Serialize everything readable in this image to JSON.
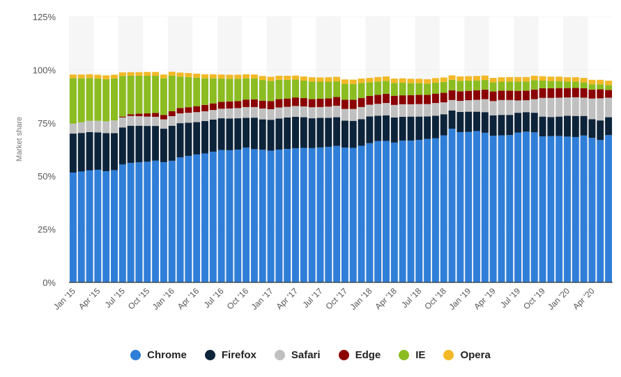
{
  "chart_data": {
    "type": "bar",
    "stacked": true,
    "ylabel": "Market share",
    "xlabel": "",
    "ylim": [
      0,
      125
    ],
    "y_ticks": [
      "0%",
      "25%",
      "50%",
      "75%",
      "100%",
      "125%"
    ],
    "y_tick_values": [
      0,
      25,
      50,
      75,
      100,
      125
    ],
    "grid": "horizontal",
    "legend_position": "bottom",
    "x_tick_labels": [
      "Jan '15",
      "Apr '15",
      "Jul '15",
      "Oct '15",
      "Jan '16",
      "Apr '16",
      "Jul '16",
      "Oct '16",
      "Jan '17",
      "Apr '17",
      "Jul '17",
      "Oct '17",
      "Jan '18",
      "Apr '18",
      "Jul '18",
      "Oct '18",
      "Jan '19",
      "Apr '19",
      "Jul '19",
      "Oct '19",
      "Jan '20",
      "Apr '20"
    ],
    "categories": [
      "Jan '15",
      "Feb '15",
      "Mar '15",
      "Apr '15",
      "May '15",
      "Jun '15",
      "Jul '15",
      "Aug '15",
      "Sep '15",
      "Oct '15",
      "Nov '15",
      "Dec '15",
      "Jan '16",
      "Feb '16",
      "Mar '16",
      "Apr '16",
      "May '16",
      "Jun '16",
      "Jul '16",
      "Aug '16",
      "Sep '16",
      "Oct '16",
      "Nov '16",
      "Dec '16",
      "Jan '17",
      "Feb '17",
      "Mar '17",
      "Apr '17",
      "May '17",
      "Jun '17",
      "Jul '17",
      "Aug '17",
      "Sep '17",
      "Oct '17",
      "Nov '17",
      "Dec '17",
      "Jan '18",
      "Feb '18",
      "Mar '18",
      "Apr '18",
      "May '18",
      "Jun '18",
      "Jul '18",
      "Aug '18",
      "Sep '18",
      "Oct '18",
      "Nov '18",
      "Dec '18",
      "Jan '19",
      "Feb '19",
      "Mar '19",
      "Apr '19",
      "May '19",
      "Jun '19",
      "Jul '19",
      "Aug '19",
      "Sep '19",
      "Oct '19",
      "Nov '19",
      "Dec '19",
      "Jan '20",
      "Feb '20",
      "Mar '20",
      "Apr '20",
      "May '20",
      "Jun '20"
    ],
    "series": [
      {
        "name": "Chrome",
        "color": "#2f7ed8",
        "values": [
          51.7,
          52.2,
          52.7,
          53.0,
          52.3,
          52.8,
          55.5,
          56.2,
          56.5,
          56.8,
          57.3,
          56.6,
          57.2,
          58.8,
          59.5,
          60.2,
          60.7,
          61.5,
          62.3,
          62.2,
          62.5,
          63.4,
          62.7,
          62.4,
          62.0,
          62.5,
          62.8,
          63.1,
          63.3,
          63.2,
          63.5,
          63.8,
          64.2,
          63.4,
          63.3,
          64.3,
          65.5,
          66.5,
          66.6,
          65.8,
          66.7,
          66.7,
          67.0,
          67.5,
          67.8,
          69.2,
          72.3,
          70.7,
          70.8,
          71.2,
          70.4,
          69.0,
          69.2,
          69.3,
          70.5,
          70.9,
          70.6,
          68.7,
          68.8,
          68.9,
          68.6,
          68.4,
          69.1,
          68.0,
          67.0,
          69.3
        ]
      },
      {
        "name": "Firefox",
        "color": "#0d233a",
        "values": [
          18.3,
          18.1,
          18.0,
          17.6,
          17.9,
          17.4,
          17.4,
          17.5,
          17.2,
          16.8,
          16.3,
          15.7,
          16.5,
          16.1,
          15.6,
          15.2,
          15.2,
          15.1,
          14.9,
          14.9,
          14.7,
          14.0,
          14.8,
          14.3,
          14.5,
          14.6,
          14.8,
          14.8,
          14.4,
          14.0,
          13.9,
          13.6,
          13.5,
          12.7,
          12.7,
          12.5,
          12.6,
          11.9,
          12.0,
          11.8,
          11.2,
          11.3,
          11.0,
          10.6,
          10.6,
          9.9,
          8.6,
          9.5,
          9.5,
          9.1,
          9.7,
          9.6,
          9.6,
          9.5,
          9.3,
          9.2,
          9.2,
          9.3,
          9.0,
          9.1,
          9.8,
          9.9,
          9.2,
          8.8,
          9.2,
          8.4
        ]
      },
      {
        "name": "Safari",
        "color": "#c0c0c0",
        "values": [
          4.7,
          5.0,
          5.3,
          5.4,
          5.6,
          6.0,
          4.7,
          4.6,
          4.5,
          4.4,
          4.3,
          4.4,
          4.5,
          4.6,
          4.7,
          4.7,
          4.6,
          4.5,
          4.5,
          4.7,
          4.8,
          5.1,
          5.0,
          5.1,
          5.0,
          5.2,
          5.0,
          5.1,
          5.1,
          5.2,
          5.1,
          5.3,
          5.4,
          5.5,
          5.6,
          5.7,
          5.5,
          5.6,
          5.8,
          5.9,
          5.9,
          5.8,
          5.9,
          5.8,
          6.0,
          5.6,
          4.9,
          5.2,
          5.4,
          5.6,
          6.1,
          6.7,
          7.0,
          7.0,
          5.8,
          5.6,
          6.4,
          8.8,
          9.0,
          8.9,
          8.6,
          8.8,
          8.6,
          9.7,
          10.4,
          9.2
        ]
      },
      {
        "name": "Edge",
        "color": "#8b0000",
        "values": [
          0,
          0,
          0,
          0,
          0,
          0,
          0.4,
          0.8,
          1.2,
          1.5,
          1.8,
          2.1,
          2.3,
          2.5,
          2.6,
          2.8,
          3.0,
          3.1,
          3.2,
          3.3,
          3.3,
          3.5,
          3.6,
          3.7,
          3.8,
          3.9,
          3.9,
          4.0,
          3.9,
          3.8,
          3.9,
          3.9,
          4.1,
          4.3,
          4.3,
          4.2,
          4.1,
          4.2,
          4.3,
          4.3,
          4.2,
          4.3,
          4.3,
          4.3,
          4.4,
          4.5,
          4.6,
          4.5,
          4.4,
          4.5,
          4.5,
          4.5,
          4.4,
          4.4,
          4.5,
          4.5,
          4.5,
          4.5,
          4.5,
          4.5,
          4.4,
          4.4,
          4.4,
          4.2,
          4.2,
          3.6
        ]
      },
      {
        "name": "IE",
        "color": "#8bbc21",
        "values": [
          21.4,
          20.7,
          20.1,
          19.9,
          19.8,
          19.7,
          19.1,
          18.1,
          17.8,
          17.7,
          17.5,
          17.2,
          16.8,
          14.8,
          14.2,
          13.4,
          12.5,
          11.8,
          11.0,
          10.7,
          10.5,
          10.0,
          9.8,
          9.7,
          9.5,
          9.1,
          8.8,
          8.4,
          8.2,
          8.3,
          8.0,
          7.8,
          7.4,
          7.5,
          7.4,
          7.1,
          6.4,
          6.3,
          6.1,
          6.0,
          5.9,
          5.6,
          5.5,
          5.3,
          5.2,
          5.1,
          4.9,
          4.9,
          4.8,
          4.6,
          4.5,
          4.3,
          4.2,
          4.3,
          4.4,
          4.3,
          4.4,
          3.6,
          3.4,
          3.3,
          3.0,
          2.9,
          2.8,
          2.5,
          2.4,
          2.3
        ]
      },
      {
        "name": "Opera",
        "color": "#f2b826",
        "values": [
          1.7,
          1.8,
          1.8,
          1.8,
          1.8,
          1.8,
          1.7,
          1.7,
          1.7,
          1.8,
          1.8,
          1.8,
          1.8,
          1.9,
          1.9,
          1.9,
          1.9,
          1.9,
          1.9,
          1.9,
          1.9,
          1.9,
          1.9,
          1.9,
          1.9,
          1.9,
          1.9,
          1.9,
          2.0,
          2.0,
          2.0,
          2.1,
          2.1,
          2.1,
          2.1,
          2.1,
          2.1,
          2.1,
          2.1,
          2.1,
          2.1,
          2.1,
          2.1,
          2.1,
          2.1,
          2.1,
          2.1,
          2.1,
          2.1,
          2.1,
          2.1,
          2.1,
          2.1,
          2.1,
          2.1,
          2.1,
          2.1,
          2.1,
          2.1,
          2.1,
          2.1,
          2.1,
          2.1,
          2.1,
          2.1,
          2.1
        ]
      }
    ]
  }
}
